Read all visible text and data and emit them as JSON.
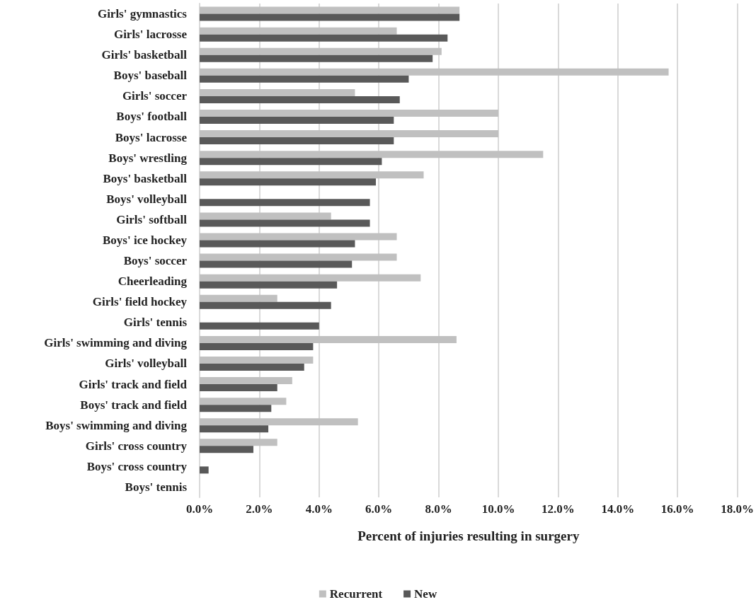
{
  "chart_data": {
    "type": "bar",
    "orientation": "horizontal",
    "xlabel": "Percent of injuries resulting in surgery",
    "categories": [
      "Girls' gymnastics",
      "Girls' lacrosse",
      "Girls' basketball",
      "Boys' baseball",
      "Girls' soccer",
      "Boys' football",
      "Boys' lacrosse",
      "Boys' wrestling",
      "Boys' basketball",
      "Boys' volleyball",
      "Girls' softball",
      "Boys' ice hockey",
      "Boys' soccer",
      "Cheerleading",
      "Girls' field hockey",
      "Girls' tennis",
      "Girls' swimming and diving",
      "Girls' volleyball",
      "Girls' track and field",
      "Boys' track and field",
      "Boys' swimming and diving",
      "Girls' cross country",
      "Boys' cross country",
      "Boys' tennis"
    ],
    "series": [
      {
        "name": "Recurrent",
        "color": "#c0c0c0",
        "values": [
          8.7,
          6.6,
          8.1,
          15.7,
          5.2,
          10.0,
          10.0,
          11.5,
          7.5,
          null,
          4.4,
          6.6,
          6.6,
          7.4,
          2.6,
          null,
          8.6,
          3.8,
          3.1,
          2.9,
          5.3,
          2.6,
          null,
          null
        ]
      },
      {
        "name": "New",
        "color": "#595959",
        "values": [
          8.7,
          8.3,
          7.8,
          7.0,
          6.7,
          6.5,
          6.5,
          6.1,
          5.9,
          5.7,
          5.7,
          5.2,
          5.1,
          4.6,
          4.4,
          4.0,
          3.8,
          3.5,
          2.6,
          2.4,
          2.3,
          1.8,
          0.3,
          null
        ]
      }
    ],
    "xlim": [
      0,
      18
    ],
    "xticks": [
      {
        "value": 0,
        "label": "0.0%"
      },
      {
        "value": 2,
        "label": "2.0%"
      },
      {
        "value": 4,
        "label": "4.0%"
      },
      {
        "value": 6,
        "label": "6.0%"
      },
      {
        "value": 8,
        "label": "8.0%"
      },
      {
        "value": 10,
        "label": "10.0%"
      },
      {
        "value": 12,
        "label": "12.0%"
      },
      {
        "value": 14,
        "label": "14.0%"
      },
      {
        "value": 16,
        "label": "16.0%"
      },
      {
        "value": 18,
        "label": "18.0%"
      }
    ],
    "grid": "x",
    "legend": "bottom"
  }
}
